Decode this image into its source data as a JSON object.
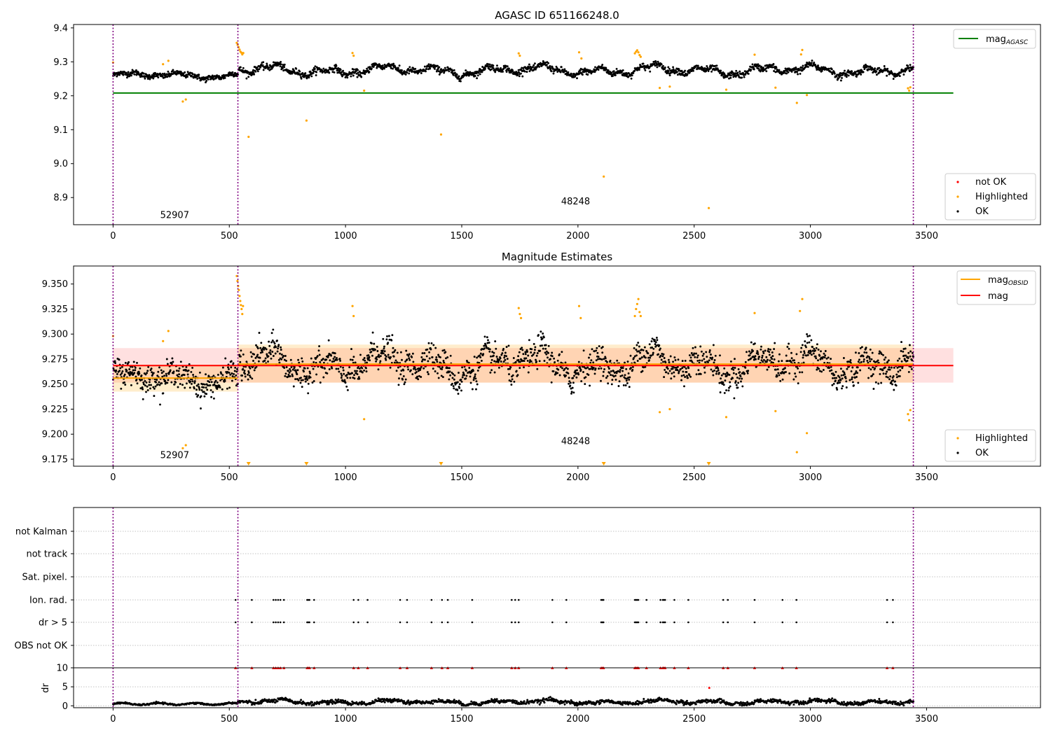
{
  "chart_data": [
    {
      "type": "scatter",
      "title": "AGASC ID 651166248.0",
      "xlim": [
        -170,
        3990
      ],
      "ylim": [
        8.82,
        9.41
      ],
      "xticks": [
        "0",
        "500",
        "1000",
        "1500",
        "2000",
        "2500",
        "3000",
        "3500"
      ],
      "yticks": [
        "8.9",
        "9.0",
        "9.1",
        "9.2",
        "9.3",
        "9.4"
      ],
      "grid": false,
      "obs_boundaries": [
        0,
        537,
        3443
      ],
      "obs_labels": [
        {
          "text": "52907",
          "x": 265,
          "y": 8.84
        },
        {
          "text": "48248",
          "x": 1990,
          "y": 8.88
        }
      ],
      "reference_line": {
        "name": "mag_AGASC",
        "value": 9.208,
        "x_range": [
          0,
          3615
        ],
        "color": "#008000"
      },
      "legend_top": {
        "placement": "top-right",
        "entries": [
          {
            "label": "mag",
            "sub": "AGASC",
            "color": "#008000",
            "kind": "line"
          }
        ]
      },
      "legend_bottom": {
        "placement": "bottom-right",
        "entries": [
          {
            "label": "not OK",
            "color": "#ff0000",
            "kind": "dot"
          },
          {
            "label": "Highlighted",
            "color": "#ffa500",
            "kind": "dot"
          },
          {
            "label": "OK",
            "color": "#000000",
            "kind": "dot"
          }
        ]
      },
      "series": [
        {
          "name": "OK",
          "color": "#000000",
          "segments": [
            {
              "x0": 0,
              "x1": 537,
              "base": 9.26,
              "amp": 0.01,
              "noise": 0.007,
              "n": 330
            },
            {
              "x0": 540,
              "x1": 3443,
              "base": 9.275,
              "amp": 0.018,
              "noise": 0.008,
              "n": 1700
            }
          ]
        },
        {
          "name": "Highlighted",
          "color": "#ffa500",
          "points": [
            [
              0,
              9.298
            ],
            [
              215,
              9.293
            ],
            [
              238,
              9.303
            ],
            [
              300,
              9.183
            ],
            [
              313,
              9.189
            ],
            [
              532,
              9.356
            ],
            [
              536,
              9.35
            ],
            [
              540,
              9.343
            ],
            [
              544,
              9.336
            ],
            [
              548,
              9.33
            ],
            [
              552,
              9.327
            ],
            [
              556,
              9.322
            ],
            [
              560,
              9.326
            ],
            [
              583,
              9.079
            ],
            [
              832,
              9.127
            ],
            [
              1030,
              9.326
            ],
            [
              1035,
              9.318
            ],
            [
              1080,
              9.215
            ],
            [
              1411,
              9.086
            ],
            [
              1745,
              9.325
            ],
            [
              1750,
              9.318
            ],
            [
              2005,
              9.328
            ],
            [
              2015,
              9.31
            ],
            [
              2111,
              8.962
            ],
            [
              2245,
              9.325
            ],
            [
              2250,
              9.33
            ],
            [
              2255,
              9.334
            ],
            [
              2260,
              9.328
            ],
            [
              2265,
              9.32
            ],
            [
              2270,
              9.315
            ],
            [
              2352,
              9.223
            ],
            [
              2395,
              9.227
            ],
            [
              2563,
              8.869
            ],
            [
              2638,
              9.218
            ],
            [
              2760,
              9.321
            ],
            [
              2850,
              9.224
            ],
            [
              2942,
              9.179
            ],
            [
              2960,
              9.322
            ],
            [
              2965,
              9.335
            ],
            [
              2985,
              9.202
            ],
            [
              3420,
              9.222
            ],
            [
              3425,
              9.215
            ],
            [
              3430,
              9.225
            ]
          ]
        }
      ]
    },
    {
      "type": "scatter",
      "title": "Magnitude Estimates",
      "xlim": [
        -170,
        3990
      ],
      "ylim": [
        9.168,
        9.368
      ],
      "xticks": [
        "0",
        "500",
        "1000",
        "1500",
        "2000",
        "2500",
        "3000",
        "3500"
      ],
      "yticks": [
        "9.175",
        "9.200",
        "9.225",
        "9.250",
        "9.275",
        "9.300",
        "9.325",
        "9.350"
      ],
      "grid": false,
      "obs_boundaries": [
        0,
        537,
        3443
      ],
      "obs_labels": [
        {
          "text": "52907",
          "x": 265,
          "y": 9.176
        },
        {
          "text": "48248",
          "x": 1990,
          "y": 9.19
        }
      ],
      "mag_band": {
        "value": 9.2685,
        "low": 9.2515,
        "high": 9.286,
        "x_range": [
          0,
          3615
        ],
        "color": "#ff0000"
      },
      "obsid_means": [
        {
          "x0": 0,
          "x1": 537,
          "value": 9.256,
          "low": 9.2425,
          "high": 9.2695
        },
        {
          "x0": 537,
          "x1": 3443,
          "value": 9.27,
          "low": 9.2515,
          "high": 9.2895
        }
      ],
      "legend_top": {
        "placement": "top-right",
        "entries": [
          {
            "label": "mag",
            "sub": "OBSID",
            "color": "#ffa500",
            "kind": "line"
          },
          {
            "label": "mag",
            "sub": "",
            "color": "#ff0000",
            "kind": "line"
          }
        ]
      },
      "legend_bottom": {
        "placement": "bottom-right",
        "entries": [
          {
            "label": "Highlighted",
            "color": "#ffa500",
            "kind": "dot"
          },
          {
            "label": "OK",
            "color": "#000000",
            "kind": "dot"
          }
        ]
      },
      "clipped_markers": [
        583,
        832,
        1411,
        2111,
        2563
      ],
      "series": [
        {
          "name": "OK",
          "color": "#000000",
          "segments": [
            {
              "x0": 0,
              "x1": 537,
              "base": 9.256,
              "amp": 0.01,
              "noise": 0.011,
              "n": 330
            },
            {
              "x0": 540,
              "x1": 3443,
              "base": 9.27,
              "amp": 0.017,
              "noise": 0.012,
              "n": 1700
            }
          ]
        },
        {
          "name": "Highlighted",
          "color": "#ffa500",
          "points": [
            [
              0,
              9.298
            ],
            [
              215,
              9.293
            ],
            [
              238,
              9.303
            ],
            [
              300,
              9.186
            ],
            [
              313,
              9.189
            ],
            [
              532,
              9.358
            ],
            [
              535,
              9.353
            ],
            [
              538,
              9.348
            ],
            [
              541,
              9.344
            ],
            [
              544,
              9.338
            ],
            [
              547,
              9.333
            ],
            [
              550,
              9.329
            ],
            [
              553,
              9.325
            ],
            [
              556,
              9.32
            ],
            [
              559,
              9.328
            ],
            [
              1030,
              9.328
            ],
            [
              1035,
              9.318
            ],
            [
              1080,
              9.215
            ],
            [
              1745,
              9.326
            ],
            [
              1750,
              9.32
            ],
            [
              1755,
              9.316
            ],
            [
              2005,
              9.328
            ],
            [
              2012,
              9.316
            ],
            [
              2245,
              9.318
            ],
            [
              2250,
              9.325
            ],
            [
              2255,
              9.33
            ],
            [
              2260,
              9.335
            ],
            [
              2265,
              9.322
            ],
            [
              2270,
              9.318
            ],
            [
              2352,
              9.222
            ],
            [
              2395,
              9.225
            ],
            [
              2638,
              9.217
            ],
            [
              2760,
              9.321
            ],
            [
              2850,
              9.223
            ],
            [
              2942,
              9.182
            ],
            [
              2955,
              9.323
            ],
            [
              2965,
              9.335
            ],
            [
              2985,
              9.201
            ],
            [
              3420,
              9.22
            ],
            [
              3425,
              9.214
            ],
            [
              3430,
              9.224
            ]
          ]
        }
      ]
    },
    {
      "type": "scatter",
      "title": "",
      "xlim": [
        -170,
        3990
      ],
      "categories": [
        "not Kalman",
        "not track",
        "Sat. pixel.",
        "Ion. rad.",
        "dr > 5",
        "OBS not OK"
      ],
      "obs_boundaries": [
        0,
        537,
        3443
      ],
      "flag_times": [
        527,
        597,
        690,
        700,
        710,
        720,
        735,
        835,
        840,
        845,
        865,
        1035,
        1055,
        1095,
        1235,
        1265,
        1370,
        1415,
        1440,
        1545,
        1715,
        1730,
        1745,
        1890,
        1950,
        2100,
        2105,
        2110,
        2245,
        2250,
        2255,
        2260,
        2295,
        2355,
        2365,
        2370,
        2375,
        2415,
        2475,
        2625,
        2645,
        2760,
        2880,
        2940,
        3330,
        3355
      ],
      "grid": true
    },
    {
      "type": "scatter",
      "title": "",
      "ylabel": "dr",
      "xlim": [
        -170,
        3990
      ],
      "ylim": [
        -0.5,
        10
      ],
      "xticks": [
        "0",
        "500",
        "1000",
        "1500",
        "2000",
        "2500",
        "3000",
        "3500"
      ],
      "yticks": [
        "0",
        "5",
        "10"
      ],
      "obs_boundaries": [
        0,
        537,
        3443
      ],
      "clip_value": 10,
      "clip_color": "#ff0000",
      "series": [
        {
          "name": "dr",
          "color": "#000000",
          "base": 1.0,
          "amp": 0.7,
          "n": 1500
        },
        {
          "name": "dr outlier",
          "color": "#ff0000",
          "points": [
            [
              2565,
              4.7
            ]
          ]
        }
      ]
    }
  ]
}
